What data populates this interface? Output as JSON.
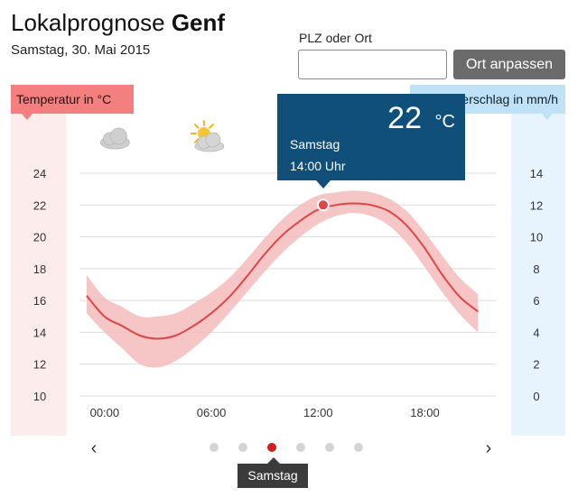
{
  "header": {
    "title_prefix": "Lokalprognose",
    "title_city": "Genf",
    "date": "Samstag, 30. Mai 2015"
  },
  "location_form": {
    "label": "PLZ oder Ort",
    "input_value": "",
    "input_placeholder": "",
    "button_label": "Ort anpassen"
  },
  "axes": {
    "temp_tab_label": "Temperatur in °C",
    "rain_tab_label": "Niederschlag in mm/h"
  },
  "weather_icons": [
    {
      "hour": 1.6,
      "icon": "cloud-icon"
    },
    {
      "hour": 6.8,
      "icon": "sun-cloud-icon"
    }
  ],
  "tooltip": {
    "value": "22",
    "unit": "°C",
    "day": "Samstag",
    "time": "14:00 Uhr"
  },
  "day_nav": {
    "prev_symbol": "‹",
    "next_symbol": "›",
    "dot_count": 6,
    "active_index": 2,
    "active_day_label": "Samstag"
  },
  "colors": {
    "temp_line": "#e04545",
    "temp_band": "#f5bcbc",
    "temp_axis_band": "#fdecec",
    "rain_axis_band": "#e7f4fd",
    "tooltip_bg": "#0f4f79",
    "active_dot": "#d71c1c"
  },
  "chart_data": {
    "type": "line",
    "x_unit": "hour",
    "x_range": [
      -0.4,
      23
    ],
    "x_ticks": [
      {
        "hour": 0,
        "label": "00:00"
      },
      {
        "hour": 6,
        "label": "06:00"
      },
      {
        "hour": 12,
        "label": "12:00"
      },
      {
        "hour": 18,
        "label": "18:00"
      }
    ],
    "y_left": {
      "range": [
        10,
        24
      ],
      "ticks": [
        10,
        12,
        14,
        16,
        18,
        20,
        22,
        24
      ]
    },
    "y_right": {
      "range": [
        0,
        14
      ],
      "ticks": [
        0,
        2,
        4,
        6,
        8,
        10,
        12,
        14
      ]
    },
    "grid": true,
    "series": [
      {
        "hours": [
          0,
          1,
          2,
          3,
          4,
          5,
          6,
          7,
          8,
          9,
          10,
          11,
          12,
          13,
          14,
          15,
          16,
          17,
          18,
          19,
          20,
          21,
          22
        ],
        "values": [
          16.3,
          15.0,
          14.4,
          13.8,
          13.6,
          13.8,
          14.4,
          15.2,
          16.2,
          17.5,
          18.9,
          20.1,
          21.0,
          21.7,
          22.0,
          22.1,
          22.0,
          21.6,
          20.7,
          19.3,
          17.6,
          16.2,
          15.3
        ],
        "lower": [
          15.2,
          14.0,
          13.0,
          12.0,
          11.8,
          12.2,
          13.0,
          14.0,
          15.2,
          16.5,
          17.8,
          19.0,
          20.0,
          20.8,
          21.3,
          21.5,
          21.3,
          20.7,
          19.6,
          18.1,
          16.5,
          15.1,
          14.0
        ],
        "upper": [
          17.6,
          16.2,
          15.6,
          15.0,
          15.0,
          15.2,
          15.8,
          16.5,
          17.4,
          18.6,
          19.9,
          21.1,
          22.0,
          22.6,
          22.8,
          22.9,
          22.8,
          22.4,
          21.6,
          20.3,
          18.8,
          17.4,
          16.4
        ]
      }
    ],
    "highlight": {
      "hour": 13.3,
      "value": 22
    }
  }
}
